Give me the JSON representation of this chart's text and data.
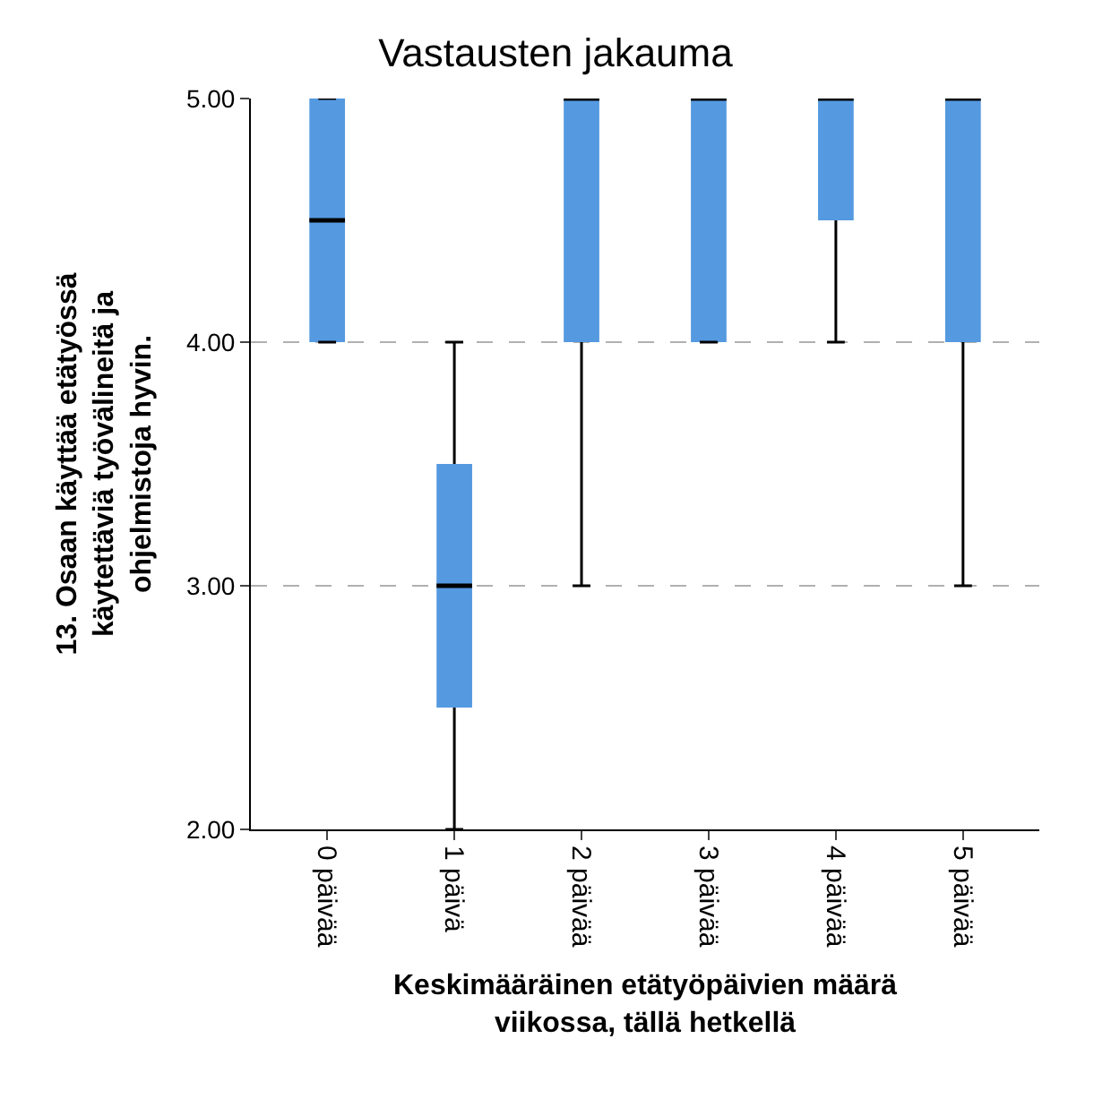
{
  "chart_data": {
    "type": "box",
    "title": "Vastausten jakauma",
    "xlabel": "Keskimääräinen etätyöpäivien määrä\nviikossa, tällä hetkellä",
    "ylabel": "13. Osaan käyttää etätyössä\nkäytettäviä työvälineitä ja\nohjelmistoja hyvin.",
    "categories": [
      "0 päivää",
      "1 päivä",
      "2 päivää",
      "3 päivää",
      "4 päivää",
      "5 päivää"
    ],
    "series": [
      {
        "color": "#5599e0",
        "boxes": [
          {
            "low": 4,
            "q1": 4,
            "median": 4.5,
            "q3": 5,
            "high": 5
          },
          {
            "low": 2,
            "q1": 2.5,
            "median": 3,
            "q3": 3.5,
            "high": 4
          },
          {
            "low": 3,
            "q1": 4,
            "median": 5,
            "q3": 5,
            "high": 5
          },
          {
            "low": 4,
            "q1": 4,
            "median": 5,
            "q3": 5,
            "high": 5
          },
          {
            "low": 4,
            "q1": 4.5,
            "median": 5,
            "q3": 5,
            "high": 5
          },
          {
            "low": 3,
            "q1": 4,
            "median": 5,
            "q3": 5,
            "high": 5
          }
        ]
      }
    ],
    "ylim": [
      2,
      5
    ],
    "yticks": [
      {
        "value": 2,
        "label": "2.00"
      },
      {
        "value": 3,
        "label": "3.00"
      },
      {
        "value": 4,
        "label": "4.00"
      },
      {
        "value": 5,
        "label": "5.00"
      }
    ],
    "grid": "y"
  }
}
